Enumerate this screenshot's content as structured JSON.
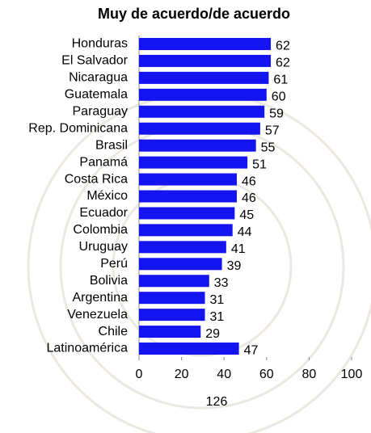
{
  "chart_data": {
    "type": "bar",
    "orientation": "horizontal",
    "title": "Muy de acuerdo/de acuerdo",
    "categories": [
      "Honduras",
      "El Salvador",
      "Nicaragua",
      "Guatemala",
      "Paraguay",
      "Rep. Dominicana",
      "Brasil",
      "Panamá",
      "Costa Rica",
      "México",
      "Ecuador",
      "Colombia",
      "Uruguay",
      "Perú",
      "Bolivia",
      "Argentina",
      "Venezuela",
      "Chile",
      "Latinoamérica"
    ],
    "values": [
      62,
      62,
      61,
      60,
      59,
      57,
      55,
      51,
      46,
      46,
      45,
      44,
      41,
      39,
      33,
      31,
      31,
      29,
      47
    ],
    "color": "#1414f0",
    "xlim": [
      0,
      100
    ],
    "xticks": [
      0,
      20,
      40,
      60,
      80,
      100
    ],
    "annotation": "126"
  }
}
